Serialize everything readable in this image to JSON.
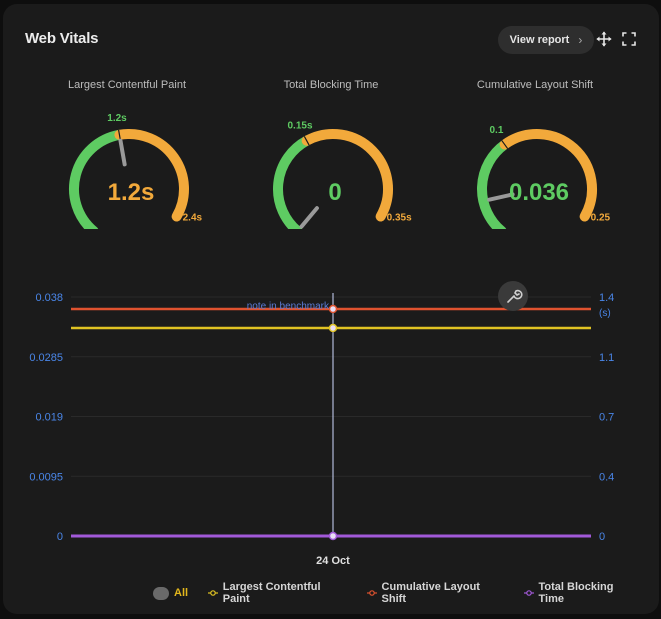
{
  "header": {
    "title": "Web Vitals",
    "view_report_label": "View report",
    "chevron": "›",
    "move_icon": "move-arrows-icon",
    "fullscreen_icon": "fullscreen-icon"
  },
  "gauges": [
    {
      "title": "Largest Contentful Paint",
      "value_label": "1.2s",
      "value": 1.2,
      "threshold_label": "1.2s",
      "threshold": 1.2,
      "max_label": "2.4s",
      "max": 2.4,
      "value_color": "#f2a93b"
    },
    {
      "title": "Total Blocking Time",
      "value_label": "0",
      "value": 0,
      "threshold_label": "0.15s",
      "threshold": 0.15,
      "max_label": "0.35s",
      "max": 0.35,
      "value_color": "#5ecb62"
    },
    {
      "title": "Cumulative Layout Shift",
      "value_label": "0.036",
      "value": 0.036,
      "threshold_label": "0.1",
      "threshold": 0.1,
      "max_label": "0.25",
      "max": 0.25,
      "value_color": "#5ecb62"
    }
  ],
  "colors": {
    "good": "#5ecb62",
    "needs_improvement": "#f2a93b",
    "axis_text": "#4a86e8",
    "lcp": "#e0c323",
    "cls": "#e0532f",
    "tbt": "#a259d9"
  },
  "chart_data": {
    "type": "line",
    "x": [
      "24 Oct"
    ],
    "left_axis": {
      "ticks": [
        "0.038",
        "0.0285",
        "0.019",
        "0.0095",
        "0"
      ],
      "range": [
        0,
        0.038
      ]
    },
    "right_axis": {
      "ticks": [
        "1.4",
        "1.1",
        "0.7",
        "0.4",
        "0"
      ],
      "unit": "(s)",
      "range": [
        0,
        1.4
      ]
    },
    "annotation": "note in benchmark",
    "series": [
      {
        "name": "Largest Contentful Paint",
        "axis": "right",
        "values": [
          1.2
        ]
      },
      {
        "name": "Cumulative Layout Shift",
        "axis": "left",
        "values": [
          0.036
        ]
      },
      {
        "name": "Total Blocking Time",
        "axis": "right",
        "values": [
          0
        ]
      }
    ],
    "legend_position": "bottom",
    "grid": true,
    "wrench_icon": "wrench-icon"
  },
  "legend": {
    "all_label": "All",
    "items": [
      "Largest Contentful Paint",
      "Cumulative Layout Shift",
      "Total Blocking Time"
    ]
  }
}
